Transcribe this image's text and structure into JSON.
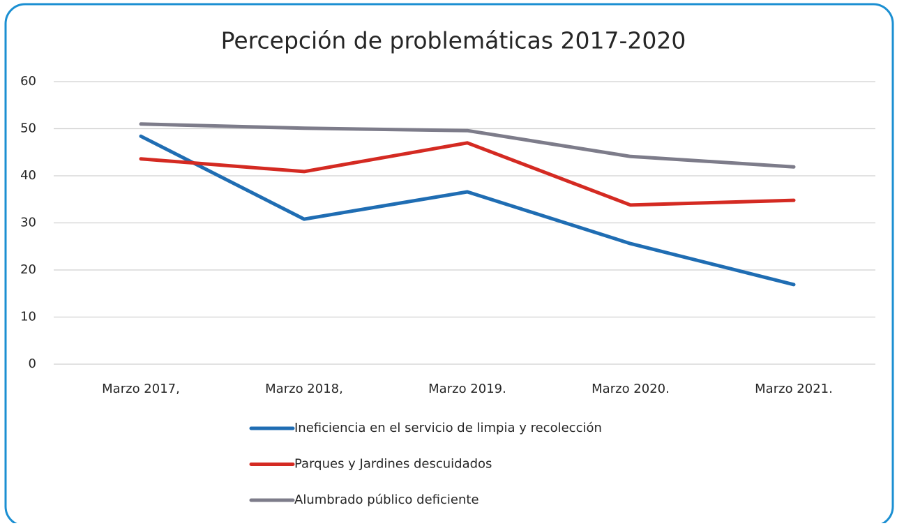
{
  "chart_data": {
    "type": "line",
    "title": "Percepción de problemáticas 2017-2020",
    "categories": [
      "Marzo 2017,",
      "Marzo 2018,",
      "Marzo 2019.",
      "Marzo 2020.",
      "Marzo 2021."
    ],
    "series": [
      {
        "name": "Ineficiencia en el servicio de limpia y recolección",
        "color": "#1f6db3",
        "values": [
          48.4,
          30.8,
          36.6,
          25.6,
          16.9
        ]
      },
      {
        "name": "Parques y Jardines descuidados",
        "color": "#d42a22",
        "values": [
          43.6,
          40.9,
          47,
          33.8,
          34.8
        ]
      },
      {
        "name": "Alumbrado público deficiente",
        "color": "#7d7c8a",
        "values": [
          51,
          50.1,
          49.6,
          44.1,
          41.9
        ]
      }
    ],
    "ylim": [
      0,
      60
    ],
    "yticks": [
      0,
      10,
      20,
      30,
      40,
      50,
      60
    ],
    "grid": true,
    "legend": "bottom"
  }
}
